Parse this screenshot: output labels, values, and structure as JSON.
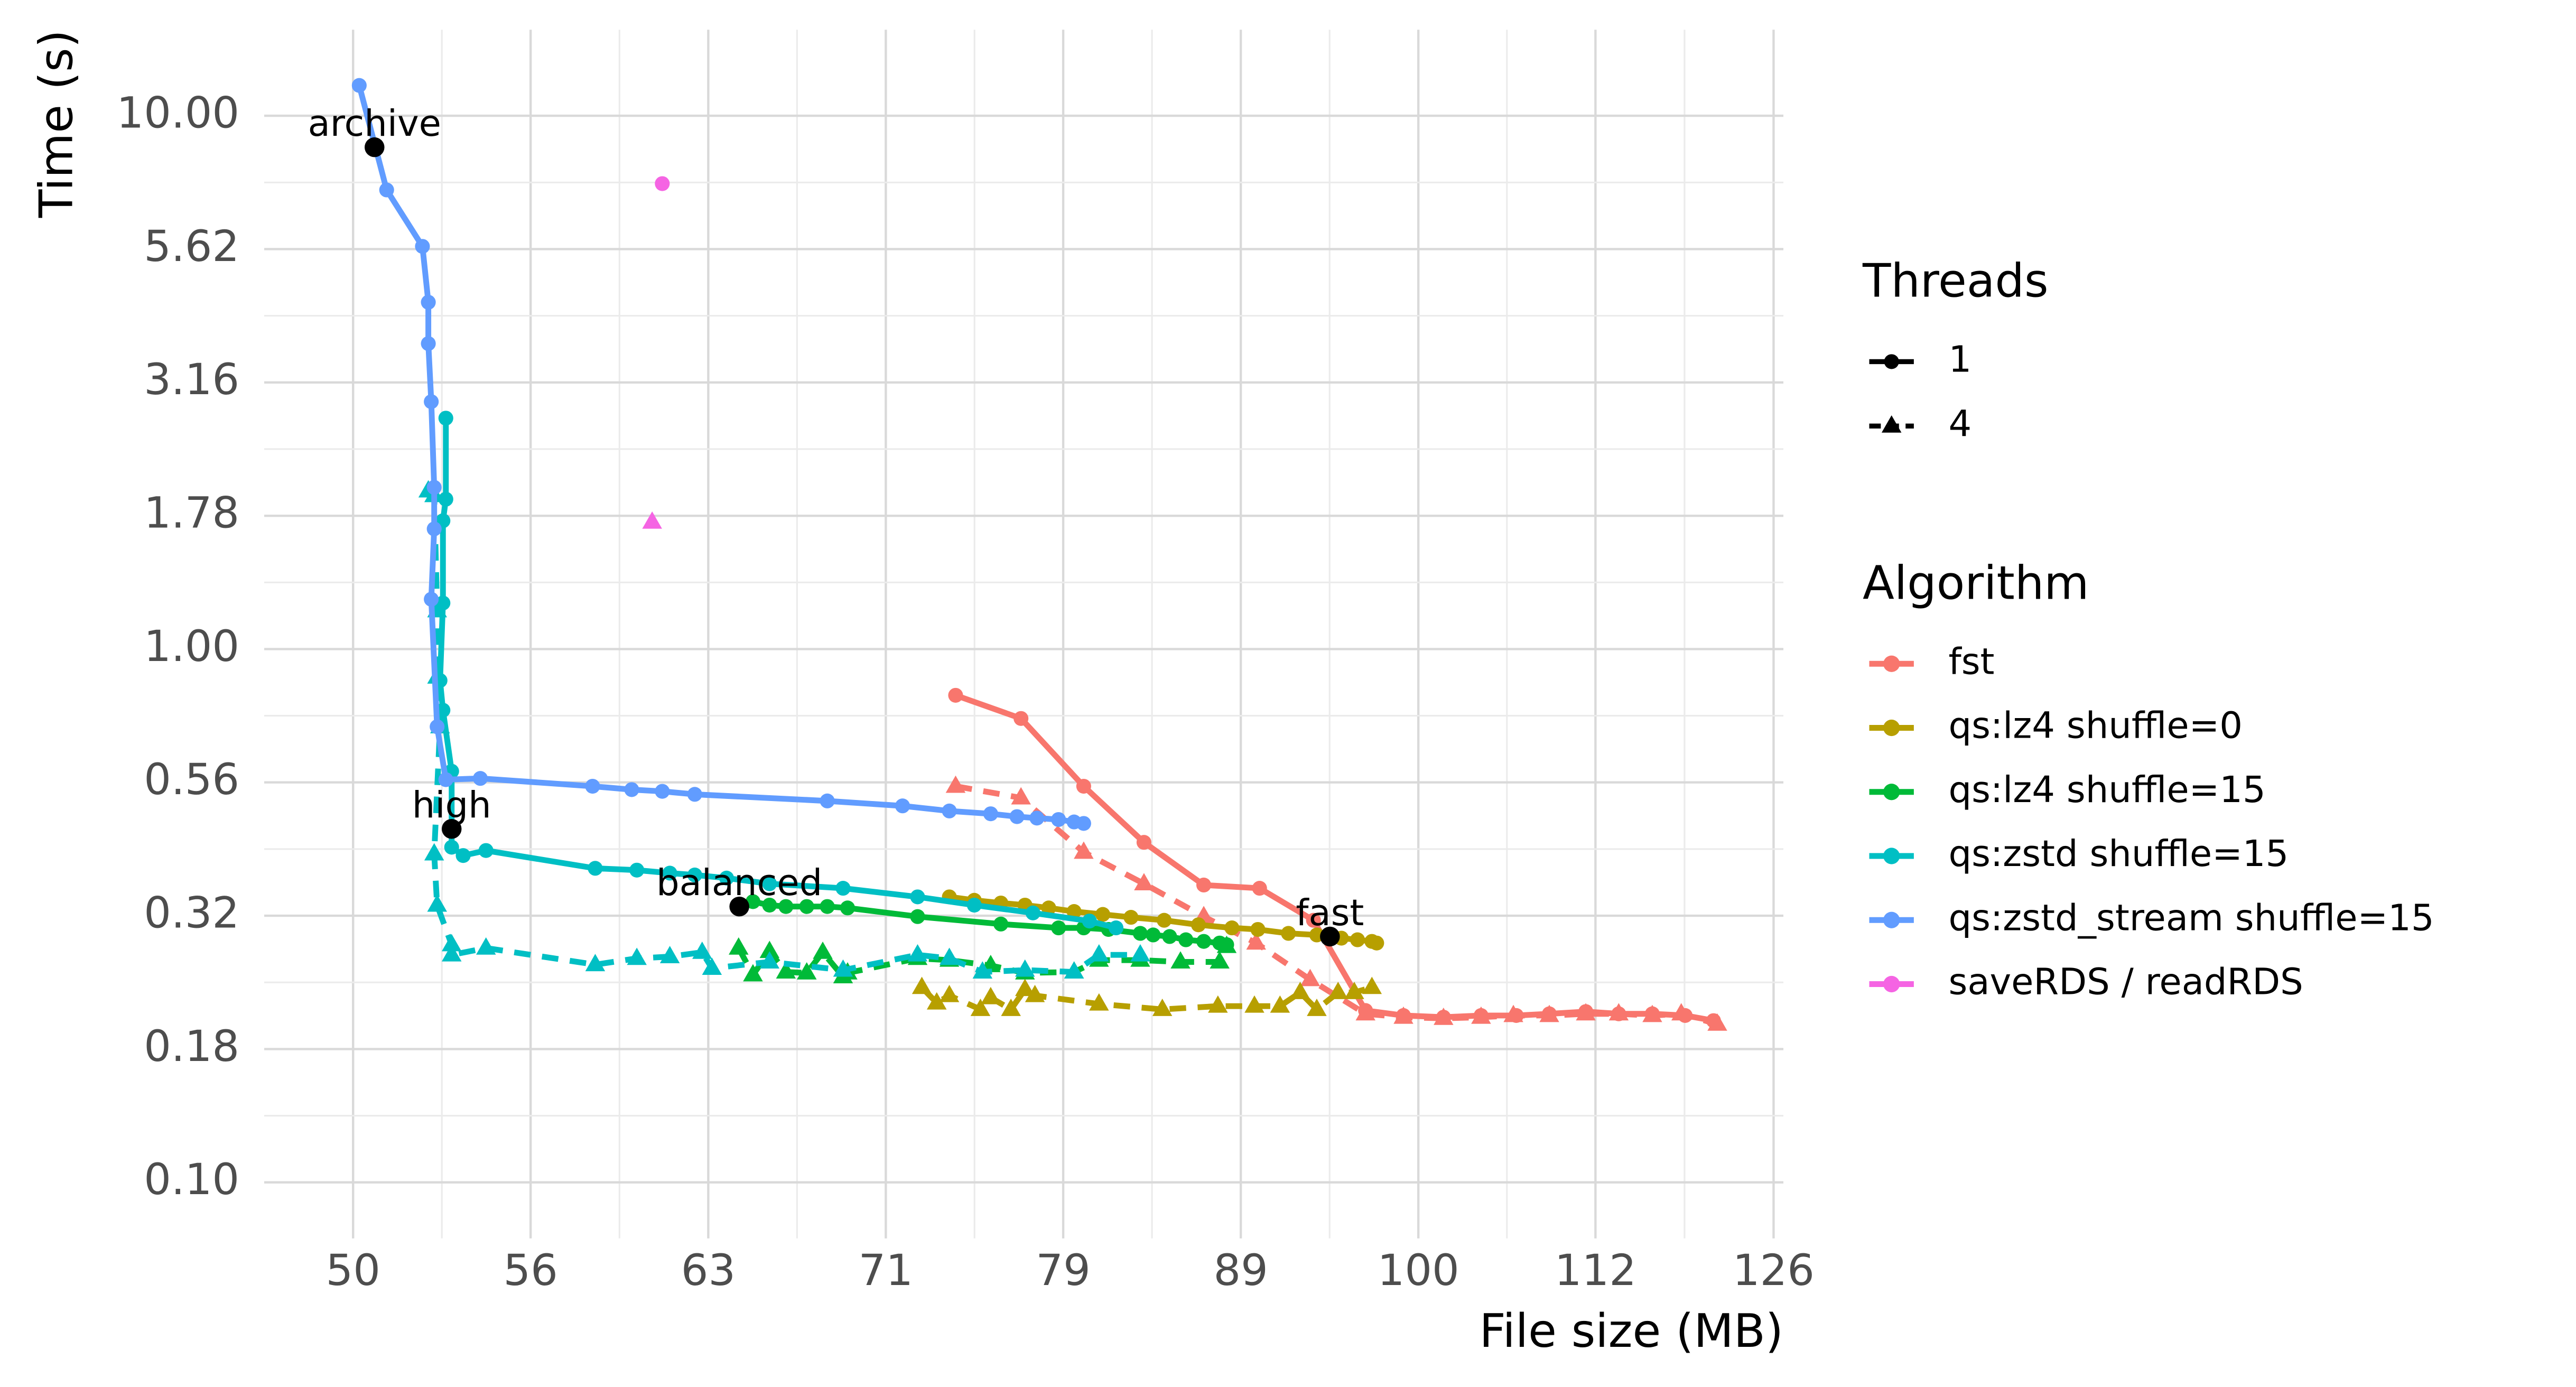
{
  "chart_data": {
    "type": "line",
    "x_label": "File size (MB)",
    "y_label": "Time (s)",
    "xlog": true,
    "ylog": true,
    "grid": true,
    "xlim": [
      47.2,
      126.4
    ],
    "ylim": [
      0.0785,
      14.5
    ],
    "xticks": [
      50,
      {
        "value": 56.1,
        "label": "56"
      },
      {
        "value": 62.95,
        "label": "63"
      },
      {
        "value": 70.63,
        "label": "71"
      },
      {
        "value": 79.24,
        "label": "79"
      },
      {
        "value": 88.91,
        "label": "89"
      },
      {
        "value": 99.76,
        "label": "100"
      },
      {
        "value": 111.9,
        "label": "112"
      },
      {
        "value": 125.6,
        "label": "126"
      }
    ],
    "yticks": [
      {
        "value": 0.1,
        "label": "0.10"
      },
      {
        "value": 0.1778,
        "label": "0.18"
      },
      {
        "value": 0.3162,
        "label": "0.32"
      },
      {
        "value": 0.5623,
        "label": "0.56"
      },
      {
        "value": 1,
        "label": "1.00"
      },
      {
        "value": 1.778,
        "label": "1.78"
      },
      {
        "value": 3.162,
        "label": "3.16"
      },
      {
        "value": 5.623,
        "label": "5.62"
      },
      {
        "value": 10,
        "label": "10.00"
      }
    ],
    "threads_title": "Threads",
    "threads": [
      {
        "name": "1",
        "shape": "circle",
        "dashed": false
      },
      {
        "name": "4",
        "shape": "triangle",
        "dashed": true
      }
    ],
    "algorithm_title": "Algorithm",
    "algorithms": [
      {
        "name": "fst",
        "color": "#F8766D"
      },
      {
        "name": "qs:lz4 shuffle=0",
        "color": "#B79F00"
      },
      {
        "name": "qs:lz4 shuffle=15",
        "color": "#00BA38"
      },
      {
        "name": "qs:zstd shuffle=15",
        "color": "#00BFC4"
      },
      {
        "name": "qs:zstd_stream shuffle=15",
        "color": "#619CFF"
      },
      {
        "name": "saveRDS / readRDS",
        "color": "#F564E3"
      }
    ],
    "series": [
      {
        "algorithm": 0,
        "threads": 0,
        "x": [
          73.9,
          77.1,
          80.3,
          83.5,
          86.8,
          90.0,
          93.2,
          96.4,
          98.8,
          101.4,
          103.9,
          106.3,
          108.6,
          111.2,
          113.6,
          116.1,
          118.6,
          120.8
        ],
        "y": [
          0.819,
          0.741,
          0.553,
          0.434,
          0.361,
          0.356,
          0.31,
          0.21,
          0.2055,
          0.204,
          0.2055,
          0.2055,
          0.207,
          0.209,
          0.207,
          0.207,
          0.2055,
          0.201
        ]
      },
      {
        "algorithm": 0,
        "threads": 1,
        "x": [
          73.9,
          77.1,
          80.3,
          83.5,
          86.8,
          89.8,
          93.0,
          96.4,
          98.8,
          101.4,
          103.9,
          106.1,
          108.6,
          111.2,
          113.6,
          116.1,
          118.3,
          121.1
        ],
        "y": [
          0.553,
          0.526,
          0.416,
          0.363,
          0.315,
          0.281,
          0.24,
          0.207,
          0.204,
          0.203,
          0.204,
          0.2055,
          0.2055,
          0.207,
          0.207,
          0.2055,
          0.207,
          0.198
        ]
      },
      {
        "algorithm": 1,
        "threads": 0,
        "x": [
          73.6,
          74.8,
          76.1,
          77.3,
          78.5,
          79.8,
          81.3,
          82.8,
          84.6,
          86.5,
          88.4,
          89.9,
          91.7,
          93.4,
          94.9,
          95.9,
          96.8,
          97.1
        ],
        "y": [
          0.343,
          0.338,
          0.334,
          0.331,
          0.327,
          0.322,
          0.318,
          0.314,
          0.31,
          0.304,
          0.3,
          0.298,
          0.293,
          0.291,
          0.287,
          0.285,
          0.283,
          0.281
        ]
      },
      {
        "algorithm": 1,
        "threads": 1,
        "x": [
          72.3,
          73.0,
          73.6,
          75.1,
          75.6,
          76.6,
          77.3,
          77.8,
          81.1,
          84.5,
          87.6,
          89.7,
          91.2,
          92.4,
          93.4,
          94.7,
          95.7,
          96.8
        ],
        "y": [
          0.232,
          0.217,
          0.224,
          0.211,
          0.222,
          0.211,
          0.23,
          0.224,
          0.216,
          0.211,
          0.214,
          0.214,
          0.214,
          0.227,
          0.211,
          0.227,
          0.227,
          0.232
        ]
      },
      {
        "algorithm": 2,
        "threads": 0,
        "x": [
          64.2,
          64.8,
          65.5,
          66.2,
          67.1,
          68.0,
          68.9,
          72.1,
          76.1,
          79.0,
          80.3,
          81.6,
          83.3,
          84.0,
          84.9,
          85.8,
          86.8,
          87.7,
          88.1
        ],
        "y": [
          0.329,
          0.336,
          0.331,
          0.329,
          0.329,
          0.329,
          0.327,
          0.315,
          0.305,
          0.3,
          0.3,
          0.298,
          0.293,
          0.291,
          0.289,
          0.285,
          0.283,
          0.281,
          0.279
        ]
      },
      {
        "algorithm": 2,
        "threads": 1,
        "x": [
          64.2,
          64.8,
          65.5,
          66.2,
          67.1,
          67.8,
          68.7,
          68.9,
          72.1,
          73.6,
          75.6,
          77.3,
          79.8,
          81.1,
          83.3,
          85.5,
          87.7,
          88.1
        ],
        "y": [
          0.275,
          0.245,
          0.271,
          0.248,
          0.247,
          0.27,
          0.243,
          0.247,
          0.263,
          0.261,
          0.255,
          0.247,
          0.248,
          0.261,
          0.261,
          0.259,
          0.259,
          0.277
        ]
      },
      {
        "algorithm": 3,
        "threads": 0,
        "x": [
          53.1,
          53.1,
          53.0,
          53.0,
          52.9,
          53.0,
          53.3,
          53.3,
          53.7,
          54.5,
          58.5,
          60.1,
          61.4,
          62.4,
          63.7,
          65.5,
          68.7,
          72.1,
          74.8,
          77.7,
          80.6,
          82.0
        ],
        "y": [
          2.71,
          1.91,
          1.74,
          1.22,
          0.873,
          0.768,
          0.59,
          0.425,
          0.41,
          0.419,
          0.388,
          0.385,
          0.38,
          0.377,
          0.372,
          0.363,
          0.356,
          0.343,
          0.331,
          0.32,
          0.309,
          0.3
        ]
      },
      {
        "algorithm": 3,
        "threads": 1,
        "x": [
          52.5,
          52.7,
          52.8,
          52.8,
          52.9,
          52.7,
          52.8,
          53.3,
          53.3,
          54.5,
          58.5,
          60.1,
          61.4,
          62.7,
          63.1,
          65.5,
          68.7,
          72.1,
          73.6,
          75.2,
          77.3,
          79.8,
          81.1,
          83.3
        ],
        "y": [
          1.98,
          1.94,
          1.18,
          0.886,
          0.715,
          0.413,
          0.331,
          0.279,
          0.267,
          0.275,
          0.256,
          0.263,
          0.265,
          0.27,
          0.252,
          0.259,
          0.25,
          0.267,
          0.263,
          0.248,
          0.25,
          0.248,
          0.267,
          0.267
        ]
      },
      {
        "algorithm": 4,
        "threads": 0,
        "x": [
          50.2,
          51.1,
          52.3,
          52.5,
          52.5,
          52.6,
          52.7,
          52.7,
          52.6,
          52.8,
          53.1,
          54.3,
          58.4,
          59.9,
          61.1,
          62.4,
          68.0,
          71.4,
          73.6,
          75.6,
          76.9,
          77.9,
          79.0,
          79.8,
          80.3
        ],
        "y": [
          11.4,
          7.26,
          5.69,
          4.47,
          3.74,
          2.91,
          2.01,
          1.68,
          1.24,
          0.715,
          0.569,
          0.572,
          0.553,
          0.545,
          0.541,
          0.534,
          0.519,
          0.508,
          0.497,
          0.491,
          0.485,
          0.482,
          0.479,
          0.474,
          0.471
        ]
      },
      {
        "algorithm": 5,
        "threads": 0,
        "x": [
          61.1
        ],
        "y": [
          7.46
        ]
      },
      {
        "algorithm": 5,
        "threads": 1,
        "x": [
          60.7
        ],
        "y": [
          1.73
        ]
      }
    ],
    "annotations": [
      {
        "text": "archive",
        "x": 50.7,
        "y": 8.73
      },
      {
        "text": "high",
        "x": 53.3,
        "y": 0.46
      },
      {
        "text": "balanced",
        "x": 64.23,
        "y": 0.329
      },
      {
        "text": "fast",
        "x": 94.2,
        "y": 0.289
      }
    ]
  }
}
